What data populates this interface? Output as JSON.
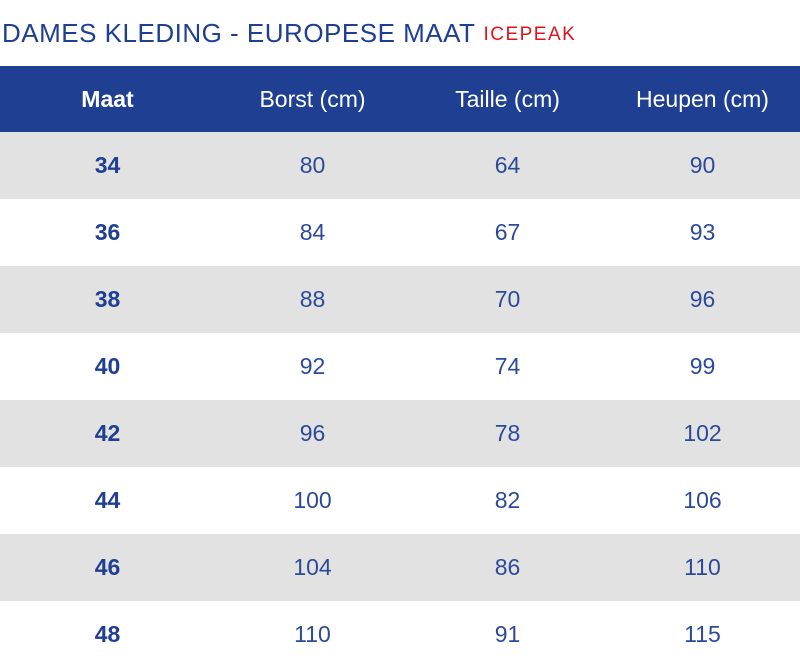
{
  "title": {
    "main": "DAMES KLEDING - EUROPESE MAAT",
    "brand": "ICEPEAK"
  },
  "colors": {
    "header_bg": "#1f3f93",
    "title_blue": "#1f3f93",
    "brand_red": "#e0121c",
    "row_gray": "#e2e2e2",
    "cell_text": "#2c4a9a"
  },
  "table": {
    "headers": [
      "Maat",
      "Borst (cm)",
      "Taille (cm)",
      "Heupen (cm)"
    ],
    "rows": [
      [
        "34",
        "80",
        "64",
        "90"
      ],
      [
        "36",
        "84",
        "67",
        "93"
      ],
      [
        "38",
        "88",
        "70",
        "96"
      ],
      [
        "40",
        "92",
        "74",
        "99"
      ],
      [
        "42",
        "96",
        "78",
        "102"
      ],
      [
        "44",
        "100",
        "82",
        "106"
      ],
      [
        "46",
        "104",
        "86",
        "110"
      ],
      [
        "48",
        "110",
        "91",
        "115"
      ]
    ]
  }
}
